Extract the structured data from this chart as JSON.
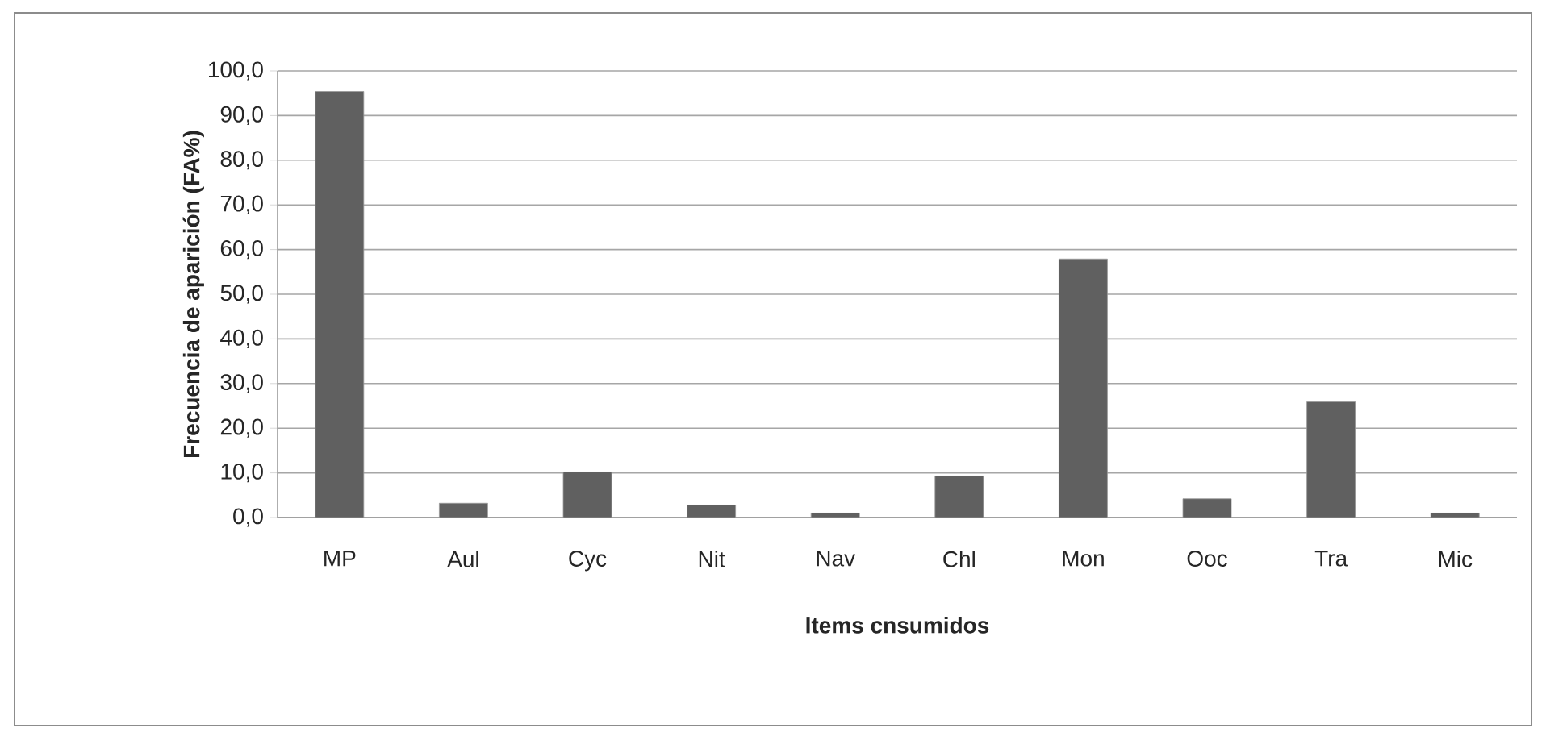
{
  "chart_data": {
    "type": "bar",
    "xlabel": "Items cnsumidos",
    "ylabel": "Frecuencia de aparición (FA%)",
    "categories": [
      "MP",
      "Aul",
      "Cyc",
      "Nit",
      "Nav",
      "Chl",
      "Mon",
      "Ooc",
      "Tra",
      "Mic"
    ],
    "values": [
      95.4,
      3.2,
      10.2,
      2.8,
      1.0,
      9.3,
      57.9,
      4.2,
      25.9,
      1.0
    ],
    "color": "#606060",
    "ylim": [
      0,
      100
    ],
    "yticks": [
      {
        "value": 0,
        "label": "0,0"
      },
      {
        "value": 10,
        "label": "10,0"
      },
      {
        "value": 20,
        "label": "20,0"
      },
      {
        "value": 30,
        "label": "30,0"
      },
      {
        "value": 40,
        "label": "40,0"
      },
      {
        "value": 50,
        "label": "50,0"
      },
      {
        "value": 60,
        "label": "60,0"
      },
      {
        "value": 70,
        "label": "70,0"
      },
      {
        "value": 80,
        "label": "80,0"
      },
      {
        "value": 90,
        "label": "90,0"
      },
      {
        "value": 100,
        "label": "100,0"
      }
    ],
    "grid": "y"
  }
}
